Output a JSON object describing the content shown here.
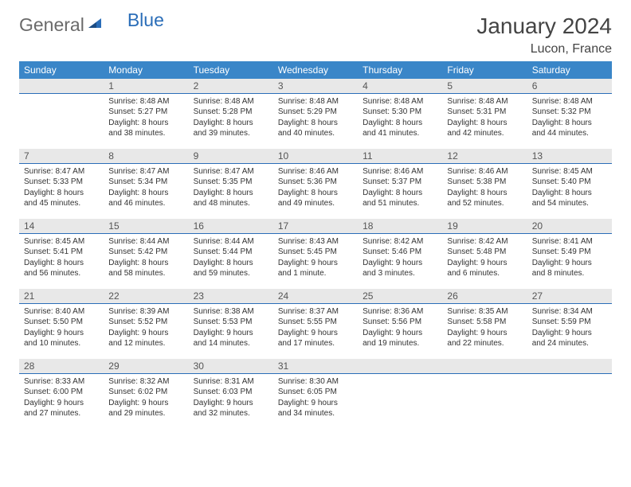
{
  "brand": {
    "part1": "General",
    "part2": "Blue"
  },
  "title": "January 2024",
  "location": "Lucon, France",
  "weekday_names": [
    "Sunday",
    "Monday",
    "Tuesday",
    "Wednesday",
    "Thursday",
    "Friday",
    "Saturday"
  ],
  "colors": {
    "header_bg": "#3a86c8",
    "header_text": "#ffffff",
    "daynum_bg": "#e8e8e8",
    "daynum_border": "#2a6db8",
    "text": "#333333",
    "logo_gray": "#6a6a6a",
    "logo_blue": "#2a6db8"
  },
  "typography": {
    "title_fontsize": 28,
    "location_fontsize": 16,
    "weekday_fontsize": 12,
    "daynum_fontsize": 12,
    "body_fontsize": 10
  },
  "first_weekday_index": 1,
  "days": [
    {
      "n": 1,
      "sunrise": "8:48 AM",
      "sunset": "5:27 PM",
      "daylight": "8 hours and 38 minutes."
    },
    {
      "n": 2,
      "sunrise": "8:48 AM",
      "sunset": "5:28 PM",
      "daylight": "8 hours and 39 minutes."
    },
    {
      "n": 3,
      "sunrise": "8:48 AM",
      "sunset": "5:29 PM",
      "daylight": "8 hours and 40 minutes."
    },
    {
      "n": 4,
      "sunrise": "8:48 AM",
      "sunset": "5:30 PM",
      "daylight": "8 hours and 41 minutes."
    },
    {
      "n": 5,
      "sunrise": "8:48 AM",
      "sunset": "5:31 PM",
      "daylight": "8 hours and 42 minutes."
    },
    {
      "n": 6,
      "sunrise": "8:48 AM",
      "sunset": "5:32 PM",
      "daylight": "8 hours and 44 minutes."
    },
    {
      "n": 7,
      "sunrise": "8:47 AM",
      "sunset": "5:33 PM",
      "daylight": "8 hours and 45 minutes."
    },
    {
      "n": 8,
      "sunrise": "8:47 AM",
      "sunset": "5:34 PM",
      "daylight": "8 hours and 46 minutes."
    },
    {
      "n": 9,
      "sunrise": "8:47 AM",
      "sunset": "5:35 PM",
      "daylight": "8 hours and 48 minutes."
    },
    {
      "n": 10,
      "sunrise": "8:46 AM",
      "sunset": "5:36 PM",
      "daylight": "8 hours and 49 minutes."
    },
    {
      "n": 11,
      "sunrise": "8:46 AM",
      "sunset": "5:37 PM",
      "daylight": "8 hours and 51 minutes."
    },
    {
      "n": 12,
      "sunrise": "8:46 AM",
      "sunset": "5:38 PM",
      "daylight": "8 hours and 52 minutes."
    },
    {
      "n": 13,
      "sunrise": "8:45 AM",
      "sunset": "5:40 PM",
      "daylight": "8 hours and 54 minutes."
    },
    {
      "n": 14,
      "sunrise": "8:45 AM",
      "sunset": "5:41 PM",
      "daylight": "8 hours and 56 minutes."
    },
    {
      "n": 15,
      "sunrise": "8:44 AM",
      "sunset": "5:42 PM",
      "daylight": "8 hours and 58 minutes."
    },
    {
      "n": 16,
      "sunrise": "8:44 AM",
      "sunset": "5:44 PM",
      "daylight": "8 hours and 59 minutes."
    },
    {
      "n": 17,
      "sunrise": "8:43 AM",
      "sunset": "5:45 PM",
      "daylight": "9 hours and 1 minute."
    },
    {
      "n": 18,
      "sunrise": "8:42 AM",
      "sunset": "5:46 PM",
      "daylight": "9 hours and 3 minutes."
    },
    {
      "n": 19,
      "sunrise": "8:42 AM",
      "sunset": "5:48 PM",
      "daylight": "9 hours and 6 minutes."
    },
    {
      "n": 20,
      "sunrise": "8:41 AM",
      "sunset": "5:49 PM",
      "daylight": "9 hours and 8 minutes."
    },
    {
      "n": 21,
      "sunrise": "8:40 AM",
      "sunset": "5:50 PM",
      "daylight": "9 hours and 10 minutes."
    },
    {
      "n": 22,
      "sunrise": "8:39 AM",
      "sunset": "5:52 PM",
      "daylight": "9 hours and 12 minutes."
    },
    {
      "n": 23,
      "sunrise": "8:38 AM",
      "sunset": "5:53 PM",
      "daylight": "9 hours and 14 minutes."
    },
    {
      "n": 24,
      "sunrise": "8:37 AM",
      "sunset": "5:55 PM",
      "daylight": "9 hours and 17 minutes."
    },
    {
      "n": 25,
      "sunrise": "8:36 AM",
      "sunset": "5:56 PM",
      "daylight": "9 hours and 19 minutes."
    },
    {
      "n": 26,
      "sunrise": "8:35 AM",
      "sunset": "5:58 PM",
      "daylight": "9 hours and 22 minutes."
    },
    {
      "n": 27,
      "sunrise": "8:34 AM",
      "sunset": "5:59 PM",
      "daylight": "9 hours and 24 minutes."
    },
    {
      "n": 28,
      "sunrise": "8:33 AM",
      "sunset": "6:00 PM",
      "daylight": "9 hours and 27 minutes."
    },
    {
      "n": 29,
      "sunrise": "8:32 AM",
      "sunset": "6:02 PM",
      "daylight": "9 hours and 29 minutes."
    },
    {
      "n": 30,
      "sunrise": "8:31 AM",
      "sunset": "6:03 PM",
      "daylight": "9 hours and 32 minutes."
    },
    {
      "n": 31,
      "sunrise": "8:30 AM",
      "sunset": "6:05 PM",
      "daylight": "9 hours and 34 minutes."
    }
  ],
  "labels": {
    "sunrise_prefix": "Sunrise: ",
    "sunset_prefix": "Sunset: ",
    "daylight_prefix": "Daylight: "
  }
}
